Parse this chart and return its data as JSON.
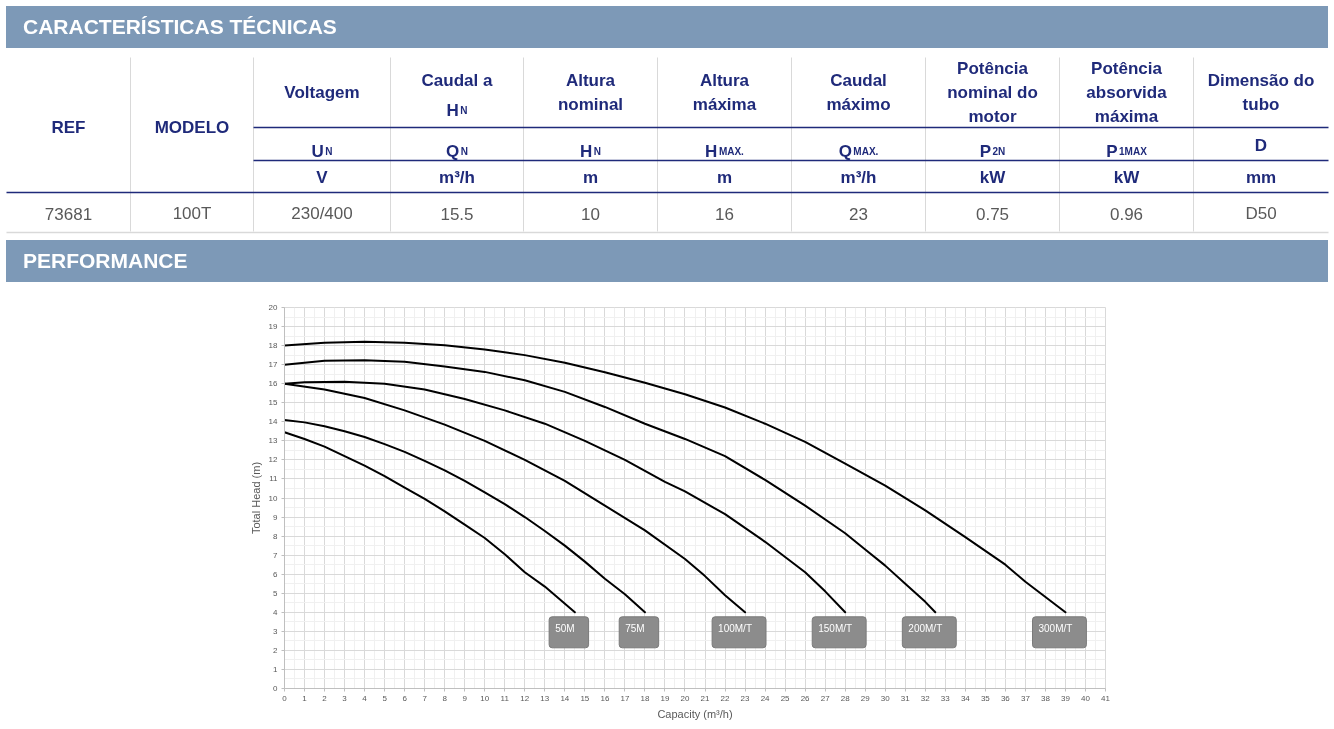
{
  "chart_data": [
    {
      "type": "other",
      "title": "CARACTERÍSTICAS TÉCNICAS",
      "annotations": [
        "REF",
        "MODELO",
        "Voltagem",
        "Caudal a\nH$_{N}$",
        "Altura\nnominal",
        "Altura\nmáxima",
        "Caudal\nmáximo",
        "Potência\nnominal do\nmotor",
        "Potência\nabsorvida\nmáxima",
        "Dimensão do\ntubo",
        "U$_{N}$",
        "Q$_{N}$",
        "H$_{N}$",
        "H$_{MAX.}$",
        "Q$_{MAX.}$",
        "P$_{2N}$",
        "P$_{1MAX}$",
        "D",
        "V",
        "m³/h",
        "m",
        "m",
        "m³/h",
        "kW",
        "kW",
        "mm",
        "73681",
        "100T",
        "230/400",
        "15.5",
        "10",
        "16",
        "23",
        "0.75",
        "0.96",
        "D50"
      ]
    },
    {
      "type": "line",
      "title": "PERFORMANCE",
      "xlabel": "Capacity (m³/h)",
      "ylabel": "Total Head (m)",
      "xlim": [
        0,
        41
      ],
      "ylim": [
        0,
        20
      ],
      "xticks": [
        0,
        1,
        2,
        3,
        4,
        5,
        6,
        7,
        8,
        9,
        10,
        11,
        12,
        13,
        14,
        15,
        16,
        17,
        18,
        19,
        20,
        21,
        22,
        23,
        24,
        25,
        26,
        27,
        28,
        29,
        30,
        31,
        32,
        33,
        34,
        35,
        36,
        37,
        38,
        39,
        40,
        41
      ],
      "yticks": [
        0,
        1,
        2,
        3,
        4,
        5,
        6,
        7,
        8,
        9,
        10,
        11,
        12,
        13,
        14,
        15,
        16,
        17,
        18,
        19,
        20
      ],
      "grid": true,
      "series": [
        {
          "name": "50M",
          "color": "#000000",
          "x": [
            0,
            1,
            2,
            3,
            4,
            5,
            6,
            7,
            8,
            9,
            10,
            11,
            12,
            13,
            14.5
          ],
          "values": [
            13.45,
            13.1,
            12.7,
            12.2,
            11.7,
            11.15,
            10.55,
            9.95,
            9.3,
            8.6,
            7.9,
            7.05,
            6.1,
            5.35,
            4.0
          ]
        },
        {
          "name": "75M",
          "color": "#000000",
          "x": [
            0,
            1,
            2,
            3,
            4,
            5,
            6,
            7,
            8,
            9,
            10,
            11,
            12,
            13,
            14,
            15,
            16,
            17,
            18
          ],
          "values": [
            14.1,
            13.97,
            13.77,
            13.5,
            13.2,
            12.83,
            12.42,
            11.95,
            11.45,
            10.9,
            10.3,
            9.68,
            9.0,
            8.27,
            7.5,
            6.66,
            5.76,
            4.95,
            4.0
          ]
        },
        {
          "name": "100M/T",
          "color": "#000000",
          "x": [
            0,
            2,
            4,
            6,
            8,
            10,
            12,
            14,
            16,
            18,
            20,
            21,
            22,
            23
          ],
          "values": [
            16.0,
            15.7,
            15.25,
            14.6,
            13.85,
            13.0,
            12.0,
            10.9,
            9.6,
            8.3,
            6.8,
            5.9,
            4.9,
            4.0
          ]
        },
        {
          "name": "150M/T",
          "color": "#000000",
          "x": [
            0,
            1,
            3,
            5,
            7,
            9,
            11,
            13,
            15,
            17,
            19,
            20,
            22,
            24,
            26,
            27,
            28
          ],
          "values": [
            16.0,
            16.07,
            16.1,
            16.0,
            15.7,
            15.2,
            14.6,
            13.9,
            13.0,
            12.0,
            10.85,
            10.35,
            9.15,
            7.7,
            6.1,
            5.1,
            4.0
          ]
        },
        {
          "name": "200M/T",
          "color": "#000000",
          "x": [
            0,
            2,
            4,
            6,
            8,
            10,
            12,
            14,
            16,
            18,
            20,
            22,
            24,
            26,
            28,
            29,
            30,
            31,
            32,
            32.5
          ],
          "values": [
            17.0,
            17.2,
            17.23,
            17.15,
            16.9,
            16.62,
            16.18,
            15.57,
            14.78,
            13.9,
            13.1,
            12.2,
            10.95,
            9.6,
            8.15,
            7.3,
            6.45,
            5.5,
            4.55,
            4.0
          ]
        },
        {
          "name": "300M/T",
          "color": "#000000",
          "x": [
            0,
            2,
            4,
            6,
            8,
            10,
            12,
            14,
            16,
            18,
            20,
            22,
            24,
            26,
            28,
            30,
            32,
            34,
            36,
            37,
            38,
            39
          ],
          "values": [
            18.0,
            18.15,
            18.2,
            18.15,
            18.02,
            17.8,
            17.5,
            17.1,
            16.6,
            16.05,
            15.45,
            14.75,
            13.9,
            12.95,
            11.8,
            10.65,
            9.35,
            7.95,
            6.5,
            5.6,
            4.8,
            4.0
          ]
        }
      ]
    }
  ]
}
